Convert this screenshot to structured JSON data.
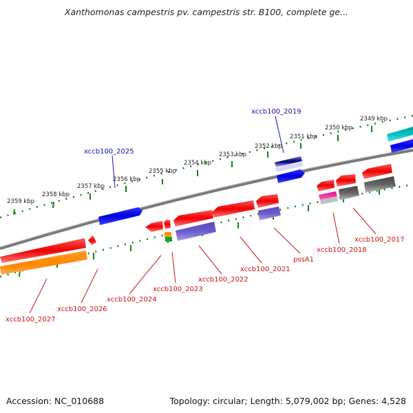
{
  "title": "Xanthomonas campestris pv. campestris str. B100, complete ge...",
  "footer": {
    "accession": "Accession: NC_010688",
    "topology": "Topology: circular; Length: 5,079,002 bp; Genes: 4,528"
  },
  "colors": {
    "backbone": "#808080",
    "forward_gene": "#0000ee",
    "forward_label": "#1010b0",
    "reverse_gene": "#ee0000",
    "reverse_label": "#cc1111",
    "tick": "#108010",
    "cds_orange": "#ff8c00",
    "cds_purple": "#6a5acd",
    "cds_grey": "#5a5a5a",
    "cds_cyan": "#00b0b0",
    "cds_magenta": "#e0108f"
  },
  "scale_labels": [
    "2349 kbp",
    "2350 kbp",
    "2351 kbp",
    "2352 kbp",
    "2353 kbp",
    "2354 kbp",
    "2355 kbp",
    "2356 kbp",
    "2357 kbp",
    "2358 kbp",
    "2359 kbp"
  ],
  "forward_labels": [
    "xccb100_2019",
    "xccb100_2025"
  ],
  "reverse_labels": [
    "xccb100_2017",
    "xccb100_2018",
    "pssA1",
    "xccb100_2021",
    "xccb100_2022",
    "xccb100_2023",
    "xccb100_2024",
    "xccb100_2026",
    "xccb100_2027"
  ]
}
